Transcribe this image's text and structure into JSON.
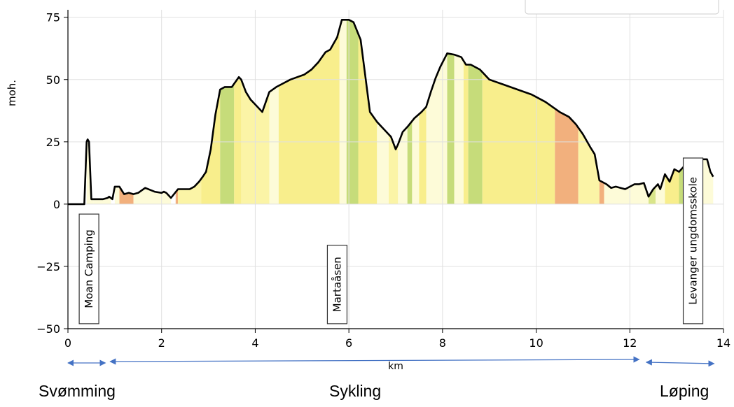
{
  "chart_data": {
    "type": "area",
    "title": "",
    "xlabel": "km",
    "ylabel": "moh.",
    "xlim": [
      0,
      14
    ],
    "ylim": [
      -50,
      78
    ],
    "x_ticks": [
      0,
      2,
      4,
      6,
      8,
      10,
      12,
      14
    ],
    "y_ticks": [
      -50,
      -25,
      0,
      25,
      50,
      75
    ],
    "y_tick_labels": [
      "−50",
      "−25",
      "0",
      "25",
      "50",
      "75"
    ],
    "grid": true,
    "legend": "top-right",
    "colors": {
      "profile_line": "#000000",
      "pale": "#fdfbd8",
      "light": "#fbf4a6",
      "yellow": "#f8ee8c",
      "green_light": "#d9e58a",
      "green": "#c6dc7a",
      "orange": "#f2b07d",
      "grid": "#e0e0e0"
    },
    "series": [
      {
        "x": [
          0,
          0.35,
          0.4,
          0.42,
          0.45,
          0.5,
          0.6,
          0.75,
          0.85,
          0.88,
          0.95,
          1.0,
          1.05,
          1.1,
          1.2,
          1.3,
          1.4,
          1.5,
          1.65,
          1.85,
          2.0,
          2.05,
          2.1,
          2.2,
          2.35,
          2.5,
          2.6,
          2.7,
          2.8,
          2.88,
          2.95,
          3.05,
          3.15,
          3.25,
          3.35,
          3.5,
          3.65,
          3.7,
          3.8,
          3.9,
          4.0,
          4.1,
          4.15,
          4.3,
          4.45,
          4.6,
          4.75,
          4.9,
          5.05,
          5.2,
          5.35,
          5.5,
          5.6,
          5.75,
          5.85,
          6.0,
          6.1,
          6.25,
          6.45,
          6.6,
          6.75,
          6.9,
          7.0,
          7.05,
          7.15,
          7.25,
          7.4,
          7.55,
          7.65,
          7.75,
          7.85,
          7.95,
          8.1,
          8.25,
          8.4,
          8.5,
          8.6,
          8.8,
          9.0,
          9.3,
          9.6,
          9.9,
          10.2,
          10.5,
          10.7,
          10.85,
          11.0,
          11.15,
          11.25,
          11.35,
          11.5,
          11.6,
          11.7,
          11.9,
          12.1,
          12.2,
          12.3,
          12.4,
          12.5,
          12.6,
          12.65,
          12.75,
          12.85,
          12.95,
          13.05,
          13.15,
          13.25,
          13.35,
          13.45,
          13.55,
          13.65,
          13.72,
          13.78
        ],
        "y": [
          0,
          0,
          25,
          26,
          25,
          2,
          2,
          2,
          2.5,
          3,
          2,
          7,
          7,
          7,
          4,
          4.5,
          4,
          4.5,
          6.5,
          5,
          4.5,
          5,
          4.5,
          2.5,
          6,
          6,
          6,
          7,
          9,
          11,
          13,
          22,
          36,
          46,
          47,
          47,
          51,
          50,
          45,
          42,
          40,
          38,
          37,
          45,
          47,
          48.5,
          50,
          51,
          52,
          54,
          57,
          61,
          62,
          67,
          74,
          74,
          73,
          66,
          37,
          33,
          30,
          27,
          22,
          24,
          29,
          31,
          34.5,
          37,
          39,
          45,
          50.5,
          55,
          60.5,
          60,
          59,
          56,
          56,
          54,
          50,
          48,
          46,
          44,
          41,
          37,
          35,
          32,
          28,
          23,
          20,
          9.5,
          8,
          6.5,
          7,
          6,
          8,
          8,
          8.5,
          3,
          6,
          8,
          6,
          12,
          9,
          14,
          13,
          15,
          10,
          17,
          16,
          18,
          18,
          13,
          11
        ]
      }
    ],
    "color_bands": [
      {
        "x0": 0.4,
        "x1": 0.55,
        "color": "pale"
      },
      {
        "x0": 0.55,
        "x1": 0.92,
        "color": "pale"
      },
      {
        "x0": 1.0,
        "x1": 1.1,
        "color": "pale"
      },
      {
        "x0": 1.1,
        "x1": 1.4,
        "color": "orange"
      },
      {
        "x0": 1.4,
        "x1": 2.2,
        "color": "pale"
      },
      {
        "x0": 2.3,
        "x1": 2.35,
        "color": "orange"
      },
      {
        "x0": 2.35,
        "x1": 2.85,
        "color": "light"
      },
      {
        "x0": 2.85,
        "x1": 3.25,
        "color": "yellow"
      },
      {
        "x0": 3.25,
        "x1": 3.55,
        "color": "green"
      },
      {
        "x0": 3.55,
        "x1": 3.7,
        "color": "yellow"
      },
      {
        "x0": 3.7,
        "x1": 4.3,
        "color": "light"
      },
      {
        "x0": 4.3,
        "x1": 4.5,
        "color": "pale"
      },
      {
        "x0": 4.5,
        "x1": 5.8,
        "color": "yellow"
      },
      {
        "x0": 5.8,
        "x1": 5.95,
        "color": "pale"
      },
      {
        "x0": 5.95,
        "x1": 6.2,
        "color": "green"
      },
      {
        "x0": 6.2,
        "x1": 6.6,
        "color": "yellow"
      },
      {
        "x0": 6.6,
        "x1": 6.85,
        "color": "pale"
      },
      {
        "x0": 6.85,
        "x1": 7.05,
        "color": "light"
      },
      {
        "x0": 7.05,
        "x1": 7.25,
        "color": "pale"
      },
      {
        "x0": 7.25,
        "x1": 7.35,
        "color": "green"
      },
      {
        "x0": 7.35,
        "x1": 7.5,
        "color": "pale"
      },
      {
        "x0": 7.5,
        "x1": 7.65,
        "color": "yellow"
      },
      {
        "x0": 7.65,
        "x1": 8.1,
        "color": "pale"
      },
      {
        "x0": 8.1,
        "x1": 8.25,
        "color": "green"
      },
      {
        "x0": 8.25,
        "x1": 8.45,
        "color": "pale"
      },
      {
        "x0": 8.45,
        "x1": 8.55,
        "color": "yellow"
      },
      {
        "x0": 8.55,
        "x1": 8.85,
        "color": "green"
      },
      {
        "x0": 8.85,
        "x1": 10.4,
        "color": "yellow"
      },
      {
        "x0": 10.4,
        "x1": 10.9,
        "color": "orange"
      },
      {
        "x0": 10.9,
        "x1": 11.35,
        "color": "light"
      },
      {
        "x0": 11.35,
        "x1": 11.45,
        "color": "orange"
      },
      {
        "x0": 11.45,
        "x1": 12.4,
        "color": "pale"
      },
      {
        "x0": 12.4,
        "x1": 12.55,
        "color": "green_light"
      },
      {
        "x0": 12.55,
        "x1": 12.75,
        "color": "pale"
      },
      {
        "x0": 12.75,
        "x1": 13.05,
        "color": "yellow"
      },
      {
        "x0": 13.05,
        "x1": 13.25,
        "color": "green"
      },
      {
        "x0": 13.25,
        "x1": 13.78,
        "color": "pale"
      }
    ],
    "annotations": [
      {
        "text": "Moan Camping",
        "x": 0.45,
        "y_top": -4,
        "y_bottom": -48
      },
      {
        "text": "Martaåsen",
        "x": 5.75,
        "y_top": -16.5,
        "y_bottom": -48
      },
      {
        "text": "Levanger ungdomsskole",
        "x": 13.35,
        "y_top": 18.5,
        "y_bottom": -48
      }
    ],
    "segments": [
      {
        "label": "Svømming",
        "x0": 0,
        "x1": 0.8
      },
      {
        "label": "Sykling",
        "x0": 0.9,
        "x1": 12.2
      },
      {
        "label": "Løping",
        "x0": 12.35,
        "x1": 13.8
      }
    ]
  }
}
